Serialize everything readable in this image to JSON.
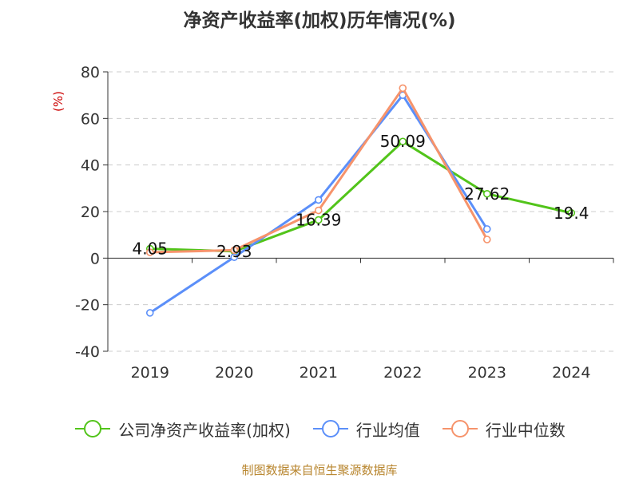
{
  "chart_data": {
    "type": "line",
    "title": "净资产收益率(加权)历年情况(%)",
    "ylabel": "(%)",
    "categories": [
      "2019",
      "2020",
      "2021",
      "2022",
      "2023",
      "2024"
    ],
    "ylim": [
      -40,
      80
    ],
    "yticks": [
      80,
      60,
      40,
      20,
      0,
      -20,
      -40
    ],
    "ytick_labels": [
      "80",
      "60",
      "40",
      "20",
      "0",
      "-20",
      "-40"
    ],
    "grid": true,
    "legend_position": "bottom",
    "series": [
      {
        "name": "公司净资产收益率(加权)",
        "color": "#52c41a",
        "values": [
          4.05,
          2.93,
          16.39,
          50.09,
          27.62,
          19.4
        ],
        "labels": [
          "4.05",
          "2.93",
          "16.39",
          "50.09",
          "27.62",
          "19.4"
        ]
      },
      {
        "name": "行业均值",
        "color": "#5b8ff9",
        "values": [
          -23.5,
          0.4,
          25.0,
          70.0,
          12.5,
          null
        ]
      },
      {
        "name": "行业中位数",
        "color": "#f6936b",
        "values": [
          2.5,
          3.4,
          20.5,
          73.0,
          8.0,
          null
        ]
      }
    ]
  },
  "footer": {
    "source": "制图数据来自恒生聚源数据库"
  }
}
